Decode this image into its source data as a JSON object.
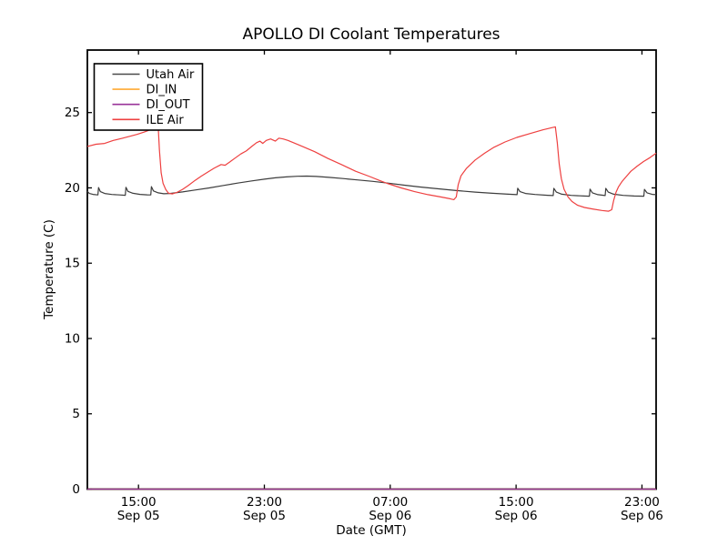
{
  "figure": {
    "background": "#ffffff",
    "axis_color": "#000000"
  },
  "chart_data": {
    "type": "line",
    "title": "APOLLO DI Coolant Temperatures",
    "xlabel": "Date (GMT)",
    "ylabel": "Temperature (C)",
    "ylim": [
      0,
      29.15
    ],
    "xlim_hours": [
      11.75,
      47.9
    ],
    "grid": false,
    "y_ticks": [
      0,
      5,
      10,
      15,
      20,
      25
    ],
    "x_ticks": [
      {
        "hour": 15,
        "time": "15:00",
        "date": "Sep 05"
      },
      {
        "hour": 23,
        "time": "23:00",
        "date": "Sep 05"
      },
      {
        "hour": 31,
        "time": "07:00",
        "date": "Sep 06"
      },
      {
        "hour": 39,
        "time": "15:00",
        "date": "Sep 06"
      },
      {
        "hour": 47,
        "time": "23:00",
        "date": "Sep 06"
      }
    ],
    "legend": {
      "position": "upper left",
      "entries": [
        {
          "label": "Utah Air",
          "color": "#4a4a4a"
        },
        {
          "label": "DI_IN",
          "color": "#ffaa33"
        },
        {
          "label": "DI_OUT",
          "color": "#993399"
        },
        {
          "label": "ILE Air",
          "color": "#ee4040"
        }
      ]
    },
    "series": [
      {
        "name": "Utah Air",
        "color": "#3d3d3d",
        "points": [
          [
            11.75,
            19.78
          ],
          [
            11.88,
            19.63
          ],
          [
            12.1,
            19.57
          ],
          [
            12.42,
            19.53
          ],
          [
            12.46,
            20.02
          ],
          [
            12.58,
            19.75
          ],
          [
            12.85,
            19.63
          ],
          [
            13.3,
            19.56
          ],
          [
            13.8,
            19.53
          ],
          [
            14.16,
            19.51
          ],
          [
            14.2,
            20.04
          ],
          [
            14.33,
            19.77
          ],
          [
            14.65,
            19.64
          ],
          [
            15.1,
            19.57
          ],
          [
            15.55,
            19.54
          ],
          [
            15.78,
            19.53
          ],
          [
            15.82,
            20.08
          ],
          [
            15.95,
            19.8
          ],
          [
            16.25,
            19.67
          ],
          [
            16.6,
            19.61
          ],
          [
            17.0,
            19.63
          ],
          [
            17.8,
            19.73
          ],
          [
            18.6,
            19.86
          ],
          [
            19.5,
            20.0
          ],
          [
            20.4,
            20.16
          ],
          [
            21.3,
            20.32
          ],
          [
            22.2,
            20.46
          ],
          [
            23.0,
            20.58
          ],
          [
            23.7,
            20.67
          ],
          [
            24.4,
            20.73
          ],
          [
            25.1,
            20.77
          ],
          [
            25.7,
            20.78
          ],
          [
            26.3,
            20.76
          ],
          [
            27.1,
            20.7
          ],
          [
            28.0,
            20.62
          ],
          [
            28.9,
            20.53
          ],
          [
            29.9,
            20.43
          ],
          [
            30.9,
            20.31
          ],
          [
            31.9,
            20.18
          ],
          [
            32.9,
            20.06
          ],
          [
            34.0,
            19.94
          ],
          [
            35.2,
            19.82
          ],
          [
            36.4,
            19.72
          ],
          [
            37.5,
            19.64
          ],
          [
            38.5,
            19.58
          ],
          [
            39.06,
            19.55
          ],
          [
            39.1,
            19.98
          ],
          [
            39.25,
            19.75
          ],
          [
            39.6,
            19.63
          ],
          [
            40.2,
            19.56
          ],
          [
            41.0,
            19.51
          ],
          [
            41.36,
            19.49
          ],
          [
            41.4,
            19.97
          ],
          [
            41.56,
            19.72
          ],
          [
            41.9,
            19.58
          ],
          [
            42.5,
            19.5
          ],
          [
            43.3,
            19.46
          ],
          [
            43.66,
            19.45
          ],
          [
            43.7,
            19.92
          ],
          [
            43.85,
            19.67
          ],
          [
            44.2,
            19.55
          ],
          [
            44.66,
            19.49
          ],
          [
            44.7,
            19.97
          ],
          [
            44.86,
            19.72
          ],
          [
            45.2,
            19.58
          ],
          [
            45.8,
            19.5
          ],
          [
            46.5,
            19.46
          ],
          [
            47.12,
            19.45
          ],
          [
            47.16,
            19.9
          ],
          [
            47.32,
            19.67
          ],
          [
            47.65,
            19.57
          ],
          [
            47.9,
            19.55
          ]
        ]
      },
      {
        "name": "DI_IN",
        "color": "#ffaa33",
        "points": [
          [
            11.75,
            0
          ],
          [
            47.9,
            0
          ]
        ]
      },
      {
        "name": "DI_OUT",
        "color": "#993399",
        "points": [
          [
            11.75,
            0
          ],
          [
            47.9,
            0
          ]
        ]
      },
      {
        "name": "ILE Air",
        "color": "#ee4040",
        "points": [
          [
            11.75,
            22.75
          ],
          [
            12.3,
            22.9
          ],
          [
            12.85,
            22.95
          ],
          [
            13.4,
            23.15
          ],
          [
            14.0,
            23.3
          ],
          [
            14.55,
            23.45
          ],
          [
            14.9,
            23.55
          ],
          [
            15.35,
            23.7
          ],
          [
            15.6,
            23.8
          ],
          [
            15.92,
            24.0
          ],
          [
            16.15,
            24.28
          ],
          [
            16.24,
            24.35
          ],
          [
            16.33,
            22.5
          ],
          [
            16.44,
            21.0
          ],
          [
            16.56,
            20.3
          ],
          [
            16.73,
            19.9
          ],
          [
            16.9,
            19.65
          ],
          [
            17.15,
            19.6
          ],
          [
            17.45,
            19.7
          ],
          [
            17.8,
            19.9
          ],
          [
            18.15,
            20.15
          ],
          [
            18.6,
            20.5
          ],
          [
            19.0,
            20.78
          ],
          [
            19.4,
            21.05
          ],
          [
            19.8,
            21.3
          ],
          [
            20.25,
            21.55
          ],
          [
            20.5,
            21.5
          ],
          [
            20.8,
            21.72
          ],
          [
            21.1,
            21.95
          ],
          [
            21.5,
            22.25
          ],
          [
            21.85,
            22.45
          ],
          [
            22.2,
            22.75
          ],
          [
            22.5,
            23.0
          ],
          [
            22.72,
            23.1
          ],
          [
            22.9,
            22.95
          ],
          [
            23.12,
            23.15
          ],
          [
            23.4,
            23.25
          ],
          [
            23.7,
            23.1
          ],
          [
            23.92,
            23.3
          ],
          [
            24.2,
            23.25
          ],
          [
            24.5,
            23.15
          ],
          [
            24.85,
            23.0
          ],
          [
            25.3,
            22.8
          ],
          [
            26.2,
            22.4
          ],
          [
            27.05,
            21.95
          ],
          [
            27.9,
            21.55
          ],
          [
            28.8,
            21.1
          ],
          [
            29.7,
            20.75
          ],
          [
            30.3,
            20.5
          ],
          [
            30.8,
            20.3
          ],
          [
            31.7,
            20.0
          ],
          [
            32.55,
            19.75
          ],
          [
            33.4,
            19.55
          ],
          [
            34.2,
            19.4
          ],
          [
            34.8,
            19.28
          ],
          [
            35.05,
            19.22
          ],
          [
            35.2,
            19.4
          ],
          [
            35.32,
            20.2
          ],
          [
            35.5,
            20.8
          ],
          [
            35.85,
            21.3
          ],
          [
            36.4,
            21.85
          ],
          [
            37.0,
            22.3
          ],
          [
            37.6,
            22.7
          ],
          [
            38.3,
            23.05
          ],
          [
            39.05,
            23.35
          ],
          [
            39.85,
            23.6
          ],
          [
            40.7,
            23.85
          ],
          [
            41.3,
            24.0
          ],
          [
            41.5,
            24.05
          ],
          [
            41.62,
            23.0
          ],
          [
            41.74,
            21.6
          ],
          [
            41.88,
            20.6
          ],
          [
            42.05,
            19.9
          ],
          [
            42.3,
            19.4
          ],
          [
            42.55,
            19.1
          ],
          [
            42.9,
            18.85
          ],
          [
            43.35,
            18.7
          ],
          [
            43.85,
            18.6
          ],
          [
            44.45,
            18.5
          ],
          [
            44.88,
            18.45
          ],
          [
            45.08,
            18.55
          ],
          [
            45.2,
            19.15
          ],
          [
            45.35,
            19.7
          ],
          [
            45.5,
            20.05
          ],
          [
            45.72,
            20.4
          ],
          [
            46.0,
            20.75
          ],
          [
            46.3,
            21.1
          ],
          [
            46.7,
            21.45
          ],
          [
            47.1,
            21.75
          ],
          [
            47.5,
            22.0
          ],
          [
            47.9,
            22.3
          ]
        ]
      }
    ]
  }
}
